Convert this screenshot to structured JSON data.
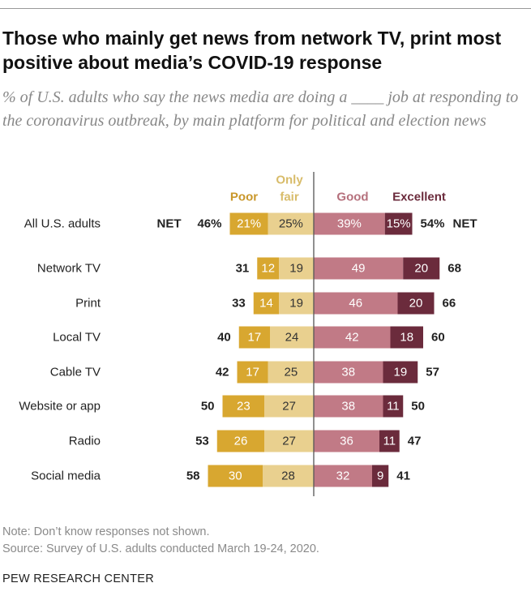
{
  "title": "Those who mainly get news from network TV, print most positive about media’s COVID-19 response",
  "subtitle": "% of U.S. adults who say the news media are doing a ____ job at responding to the coronavirus outbreak, by main platform for political and election news",
  "notes": {
    "note": "Note: Don’t know responses not shown.",
    "source": "Source: Survey of U.S. adults conducted March 19-24, 2020."
  },
  "footer": "PEW RESEARCH CENTER",
  "colors": {
    "poor": "#d8a730",
    "only_fair": "#e9d08f",
    "good": "#c17a86",
    "excellent": "#6b2b3c",
    "axis": "#555555"
  },
  "chart_data": {
    "type": "bar",
    "orientation": "horizontal-diverging",
    "legend_labels": {
      "poor": "Poor",
      "only_fair": "Only fair",
      "good": "Good",
      "excellent": "Excellent"
    },
    "categories": [
      "All U.S. adults",
      "Network TV",
      "Print",
      "Local TV",
      "Cable TV",
      "Website or app",
      "Radio",
      "Social media"
    ],
    "series": [
      {
        "name": "Poor",
        "values": [
          21,
          12,
          14,
          17,
          17,
          23,
          26,
          30
        ]
      },
      {
        "name": "Only fair",
        "values": [
          25,
          19,
          19,
          24,
          25,
          27,
          27,
          28
        ]
      },
      {
        "name": "Good",
        "values": [
          39,
          49,
          46,
          42,
          38,
          38,
          36,
          32
        ]
      },
      {
        "name": "Excellent",
        "values": [
          15,
          20,
          20,
          18,
          19,
          11,
          11,
          9
        ]
      }
    ],
    "net_negative": [
      46,
      31,
      33,
      40,
      42,
      50,
      53,
      58
    ],
    "net_positive": [
      54,
      68,
      66,
      60,
      57,
      50,
      47,
      41
    ],
    "first_row_labels": {
      "net_word": "NET",
      "poor": "21%",
      "only_fair": "25%",
      "good": "39%",
      "excellent": "15%",
      "net_negative": "46%",
      "net_positive": "54%"
    }
  }
}
